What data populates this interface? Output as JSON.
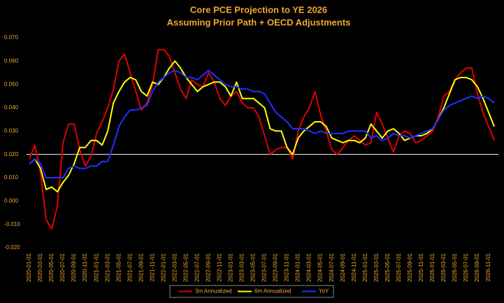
{
  "chart_data": {
    "type": "line",
    "title": "Core PCE Projection to YE 2026",
    "subtitle": "Assuming Prior Path + OECD Adjustments",
    "text_color": "#f0a830",
    "background": "#000000",
    "categories": [
      "2020-01-01",
      null,
      "2020-03-01",
      null,
      "2020-05-01",
      null,
      "2020-07-01",
      null,
      "2020-09-01",
      null,
      "2020-11-01",
      null,
      "2021-01-01",
      null,
      "2021-03-01",
      null,
      "2021-05-01",
      null,
      "2021-07-01",
      null,
      "2021-09-01",
      null,
      "2021-11-01",
      null,
      "2022-01-01",
      null,
      "2022-03-01",
      null,
      "2022-05-01",
      null,
      "2022-07-01",
      null,
      "2022-09-01",
      null,
      "2022-11-01",
      null,
      "2023-01-01",
      null,
      "2023-03-01",
      null,
      "2023-05-01",
      null,
      "2023-07-01",
      null,
      "2023-09-01",
      null,
      "2023-11-01",
      null,
      "2024-01-01",
      null,
      "2024-03-01",
      null,
      "2024-05-01",
      null,
      "2024-07-01",
      null,
      "2024-09-01",
      null,
      "2024-11-01",
      null,
      "2025-01-01",
      null,
      "2025-03-01",
      null,
      "2025-05-01",
      null,
      "2025-07-01",
      null,
      "2025-09-01",
      null,
      "2025-11-01",
      null,
      "2026-01-01",
      null,
      "2026-03-01",
      null,
      "2026-05-01",
      null,
      "2026-07-01",
      null,
      "2026-09-01",
      null,
      "2026-11-01",
      null
    ],
    "series": [
      {
        "name": "3m Annualized",
        "color": "#e00000",
        "values": [
          0.018,
          0.024,
          0.012,
          -0.008,
          -0.012,
          -0.002,
          0.025,
          0.033,
          0.033,
          0.022,
          0.015,
          0.019,
          0.029,
          0.034,
          0.04,
          0.048,
          0.06,
          0.063,
          0.055,
          0.047,
          0.039,
          0.042,
          0.05,
          0.065,
          0.065,
          0.062,
          0.055,
          0.048,
          0.044,
          0.052,
          0.05,
          0.049,
          0.055,
          0.051,
          0.044,
          0.041,
          0.045,
          0.047,
          0.042,
          0.04,
          0.04,
          0.036,
          0.028,
          0.02,
          0.022,
          0.023,
          0.023,
          0.018,
          0.03,
          0.036,
          0.04,
          0.047,
          0.037,
          0.03,
          0.022,
          0.02,
          0.023,
          0.026,
          0.028,
          0.026,
          0.024,
          0.025,
          0.038,
          0.033,
          0.027,
          0.021,
          0.028,
          0.03,
          0.029,
          0.025,
          0.026,
          0.028,
          0.03,
          0.036,
          0.045,
          0.047,
          0.052,
          0.055,
          0.057,
          0.057,
          0.046,
          0.038,
          0.032,
          0.026
        ]
      },
      {
        "name": "6m Annualized",
        "color": "#ffff00",
        "values": [
          0.016,
          0.018,
          0.014,
          0.005,
          0.006,
          0.004,
          0.008,
          0.011,
          0.016,
          0.023,
          0.023,
          0.026,
          0.026,
          0.024,
          0.03,
          0.042,
          0.047,
          0.051,
          0.053,
          0.052,
          0.047,
          0.045,
          0.051,
          0.05,
          0.053,
          0.057,
          0.06,
          0.057,
          0.053,
          0.05,
          0.047,
          0.049,
          0.05,
          0.051,
          0.051,
          0.049,
          0.045,
          0.051,
          0.044,
          0.044,
          0.044,
          0.042,
          0.04,
          0.031,
          0.03,
          0.03,
          0.023,
          0.02,
          0.027,
          0.03,
          0.032,
          0.034,
          0.034,
          0.032,
          0.027,
          0.026,
          0.025,
          0.026,
          0.026,
          0.025,
          0.027,
          0.033,
          0.03,
          0.027,
          0.03,
          0.031,
          0.029,
          0.026,
          0.027,
          0.028,
          0.028,
          0.029,
          0.031,
          0.035,
          0.04,
          0.046,
          0.052,
          0.053,
          0.053,
          0.052,
          0.049,
          0.044,
          0.038,
          0.032
        ]
      },
      {
        "name": "YoY",
        "color": "#2030ff",
        "values": [
          0.016,
          0.018,
          0.016,
          0.01,
          0.01,
          0.01,
          0.01,
          0.014,
          0.015,
          0.014,
          0.014,
          0.015,
          0.015,
          0.017,
          0.017,
          0.024,
          0.032,
          0.036,
          0.039,
          0.039,
          0.04,
          0.041,
          0.047,
          0.051,
          0.053,
          0.055,
          0.056,
          0.055,
          0.053,
          0.053,
          0.052,
          0.054,
          0.056,
          0.054,
          0.052,
          0.05,
          0.049,
          0.049,
          0.048,
          0.048,
          0.047,
          0.047,
          0.046,
          0.042,
          0.038,
          0.036,
          0.034,
          0.031,
          0.031,
          0.031,
          0.03,
          0.029,
          0.03,
          0.029,
          0.029,
          0.029,
          0.029,
          0.03,
          0.03,
          0.03,
          0.03,
          0.027,
          0.028,
          0.026,
          0.027,
          0.029,
          0.028,
          0.028,
          0.027,
          0.028,
          0.029,
          0.03,
          0.031,
          0.035,
          0.039,
          0.041,
          0.042,
          0.043,
          0.044,
          0.045,
          0.044,
          0.045,
          0.044,
          0.042
        ]
      }
    ],
    "ylim": [
      -0.02,
      0.07
    ],
    "yticks": [
      {
        "value": -0.02,
        "label": "-0.020"
      },
      {
        "value": -0.01,
        "label": "-0.010"
      },
      {
        "value": 0,
        "label": "0.000"
      },
      {
        "value": 0.01,
        "label": "0.010"
      },
      {
        "value": 0.02,
        "label": "0.020"
      },
      {
        "value": 0.03,
        "label": "0.030"
      },
      {
        "value": 0.04,
        "label": "0.040"
      },
      {
        "value": 0.05,
        "label": "0.050"
      },
      {
        "value": 0.06,
        "label": "0.060"
      },
      {
        "value": 0.07,
        "label": "0.070"
      }
    ],
    "reference_line": {
      "value": 0.02,
      "color": "#ffffff"
    },
    "grid": false,
    "legend": "bottom"
  }
}
